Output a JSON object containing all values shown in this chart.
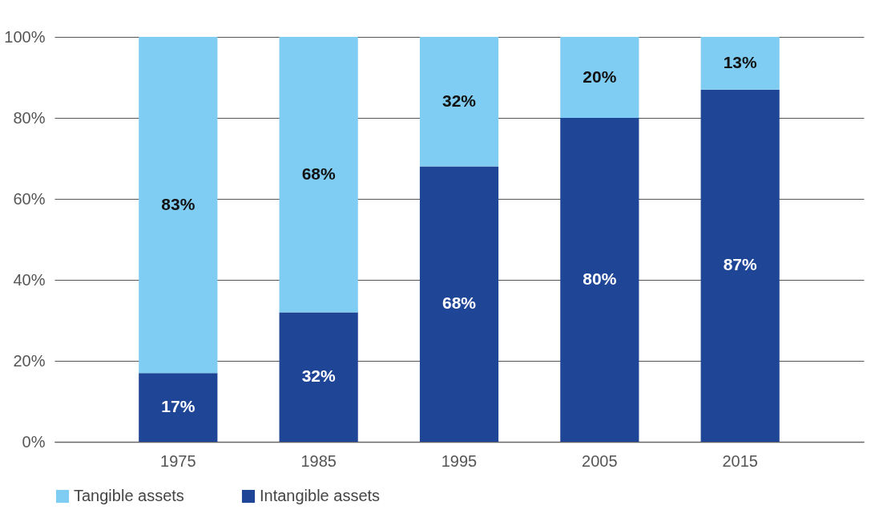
{
  "chart_data": {
    "type": "bar",
    "stacked": true,
    "categories": [
      "1975",
      "1985",
      "1995",
      "2005",
      "2015"
    ],
    "series": [
      {
        "name": "Intangible assets",
        "color": "#1f4597",
        "values": [
          17,
          32,
          68,
          80,
          87
        ],
        "value_labels": [
          "17%",
          "32%",
          "68%",
          "80%",
          "87%"
        ]
      },
      {
        "name": "Tangible assets",
        "color": "#80cdf3",
        "values": [
          83,
          68,
          32,
          20,
          13
        ],
        "value_labels": [
          "83%",
          "68%",
          "32%",
          "20%",
          "13%"
        ]
      }
    ],
    "ylim": [
      0,
      100
    ],
    "yticks": [
      {
        "value": 0,
        "label": "0%"
      },
      {
        "value": 20,
        "label": "20%"
      },
      {
        "value": 40,
        "label": "40%"
      },
      {
        "value": 60,
        "label": "60%"
      },
      {
        "value": 80,
        "label": "80%"
      },
      {
        "value": 100,
        "label": "100%"
      }
    ],
    "grid": "y",
    "legend": "bottom left"
  }
}
